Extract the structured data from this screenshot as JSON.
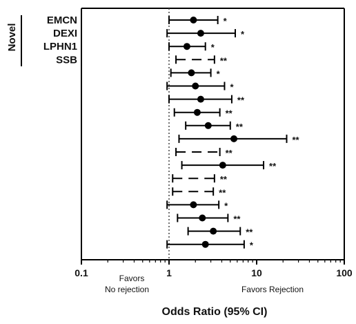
{
  "colors": {
    "marker": "#000000",
    "axis": "#000000",
    "reference_line": "#444444"
  },
  "chart_data": {
    "type": "forest",
    "title": "",
    "xlabel": "Odds Ratio (95% CI)",
    "x_scale": "log",
    "xlim": [
      0.1,
      100
    ],
    "x_ticks": [
      "0.1",
      "1",
      "10",
      "100"
    ],
    "reference_value": 1,
    "left_region_label": [
      "Favors",
      "No rejection"
    ],
    "right_region_label": "Favors Rejection",
    "group_label": "Novel",
    "rows": [
      {
        "label": "EMCN",
        "or": 1.9,
        "low": 1.0,
        "high": 3.6,
        "sig": "*",
        "ci_style": "solid"
      },
      {
        "label": "DEXI",
        "or": 2.3,
        "low": 0.95,
        "high": 5.7,
        "sig": "*",
        "ci_style": "solid"
      },
      {
        "label": "LPHN1",
        "or": 1.6,
        "low": 1.0,
        "high": 2.6,
        "sig": "*",
        "ci_style": "solid"
      },
      {
        "label": "SSB",
        "or": null,
        "low": 1.2,
        "high": 3.3,
        "sig": "**",
        "ci_style": "dashed"
      },
      {
        "label": "",
        "or": 1.8,
        "low": 1.05,
        "high": 3.0,
        "sig": "*",
        "ci_style": "solid"
      },
      {
        "label": "",
        "or": 2.0,
        "low": 0.95,
        "high": 4.3,
        "sig": "*",
        "ci_style": "solid"
      },
      {
        "label": "",
        "or": 2.3,
        "low": 1.0,
        "high": 5.2,
        "sig": "**",
        "ci_style": "solid"
      },
      {
        "label": "",
        "or": 2.1,
        "low": 1.15,
        "high": 3.8,
        "sig": "**",
        "ci_style": "solid"
      },
      {
        "label": "",
        "or": 2.8,
        "low": 1.55,
        "high": 5.0,
        "sig": "**",
        "ci_style": "solid"
      },
      {
        "label": "",
        "or": 5.5,
        "low": 1.3,
        "high": 22.0,
        "sig": "**",
        "ci_style": "solid"
      },
      {
        "label": "",
        "or": null,
        "low": 1.2,
        "high": 3.8,
        "sig": "**",
        "ci_style": "dashed"
      },
      {
        "label": "",
        "or": 4.1,
        "low": 1.4,
        "high": 12.0,
        "sig": "**",
        "ci_style": "solid"
      },
      {
        "label": "",
        "or": null,
        "low": 1.1,
        "high": 3.3,
        "sig": "**",
        "ci_style": "dashed"
      },
      {
        "label": "",
        "or": null,
        "low": 1.1,
        "high": 3.2,
        "sig": "**",
        "ci_style": "dashed"
      },
      {
        "label": "",
        "or": 1.9,
        "low": 0.95,
        "high": 3.7,
        "sig": "*",
        "ci_style": "solid"
      },
      {
        "label": "",
        "or": 2.4,
        "low": 1.25,
        "high": 4.7,
        "sig": "**",
        "ci_style": "solid"
      },
      {
        "label": "",
        "or": 3.2,
        "low": 1.65,
        "high": 6.5,
        "sig": "**",
        "ci_style": "solid"
      },
      {
        "label": "",
        "or": 2.6,
        "low": 0.95,
        "high": 7.2,
        "sig": "*",
        "ci_style": "solid"
      }
    ]
  }
}
